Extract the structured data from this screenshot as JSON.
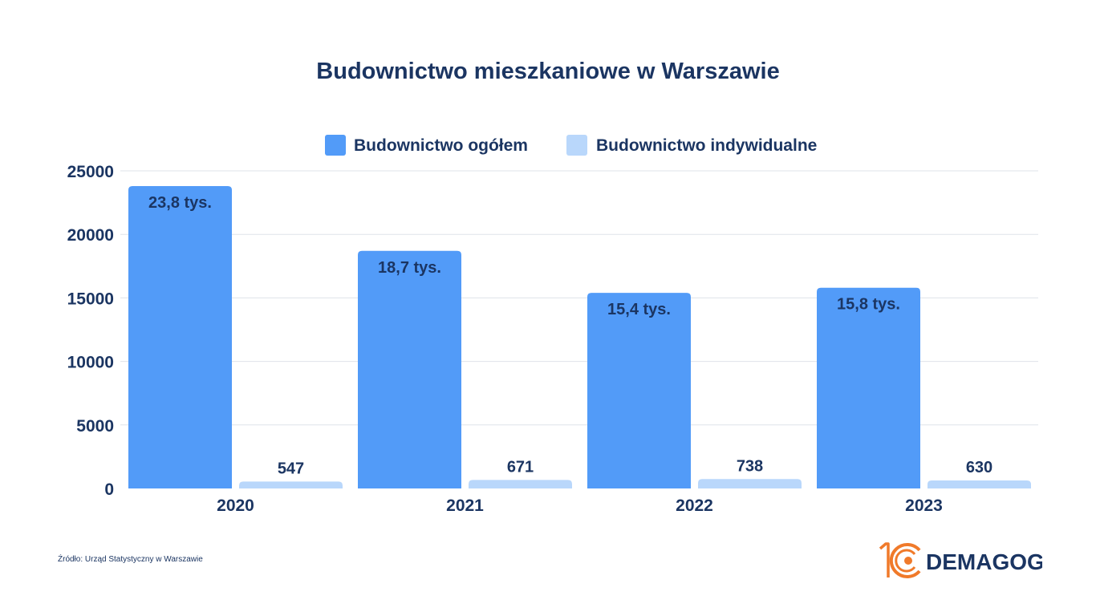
{
  "colors": {
    "primary": "#529bf8",
    "secondary": "#b9d7fb",
    "text": "#1b3562",
    "grid": "#dfe3ea",
    "logo_orange": "#f07a2a",
    "logo_navy": "#1b3562"
  },
  "source": "Źródło: Urząd Statystyczny w Warszawie",
  "logo": {
    "number": "10",
    "brand": "DEMAGOG"
  },
  "chart_data": {
    "type": "bar",
    "title": "Budownictwo mieszkaniowe w Warszawie",
    "xlabel": "",
    "ylabel": "",
    "categories": [
      "2020",
      "2021",
      "2022",
      "2023"
    ],
    "ylim": [
      0,
      25000
    ],
    "yticks": [
      "0",
      "5000",
      "10000",
      "15000",
      "20000",
      "25000"
    ],
    "grid": true,
    "legend_position": "top",
    "series": [
      {
        "name": "Budownictwo ogółem",
        "values": [
          23800,
          18700,
          15400,
          15800
        ],
        "data_labels": [
          "23,8 tys.",
          "18,7 tys.",
          "15,4 tys.",
          "15,8 tys."
        ],
        "color": "#529bf8"
      },
      {
        "name": "Budownictwo indywidualne",
        "values": [
          547,
          671,
          738,
          630
        ],
        "data_labels": [
          "547",
          "671",
          "738",
          "630"
        ],
        "color": "#b9d7fb"
      }
    ]
  }
}
